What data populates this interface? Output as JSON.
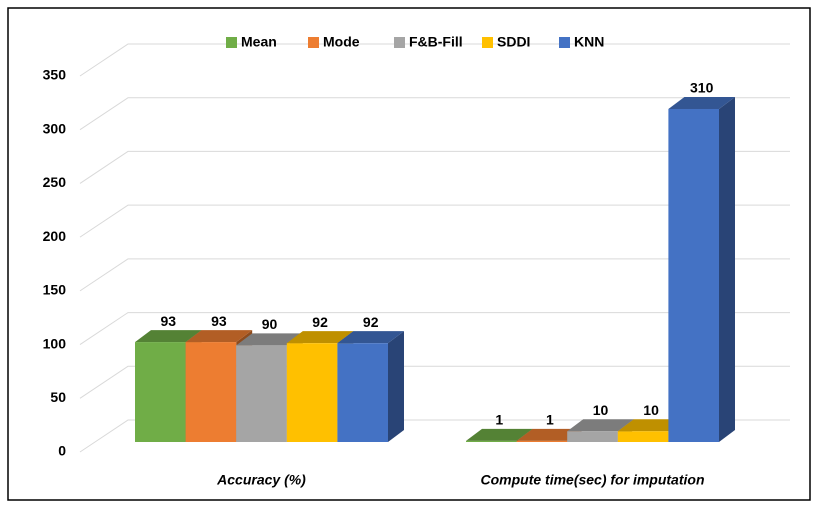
{
  "chart_data": {
    "type": "bar3d",
    "categories": [
      "Accuracy (%)",
      "Compute time(sec) for imputation"
    ],
    "series": [
      {
        "name": "Mean",
        "color": "#70ad47",
        "values": [
          93,
          1
        ]
      },
      {
        "name": "Mode",
        "color": "#ed7d31",
        "values": [
          93,
          1
        ]
      },
      {
        "name": "F&B-Fill",
        "color": "#a5a5a5",
        "values": [
          90,
          10
        ]
      },
      {
        "name": "SDDI",
        "color": "#ffc000",
        "values": [
          92,
          10
        ]
      },
      {
        "name": "KNN",
        "color": "#4472c4",
        "values": [
          92,
          310
        ]
      }
    ],
    "ylim": [
      0,
      350
    ],
    "yticks": [
      0,
      50,
      100,
      150,
      200,
      250,
      300,
      350
    ],
    "grid": true,
    "legend": "top"
  }
}
